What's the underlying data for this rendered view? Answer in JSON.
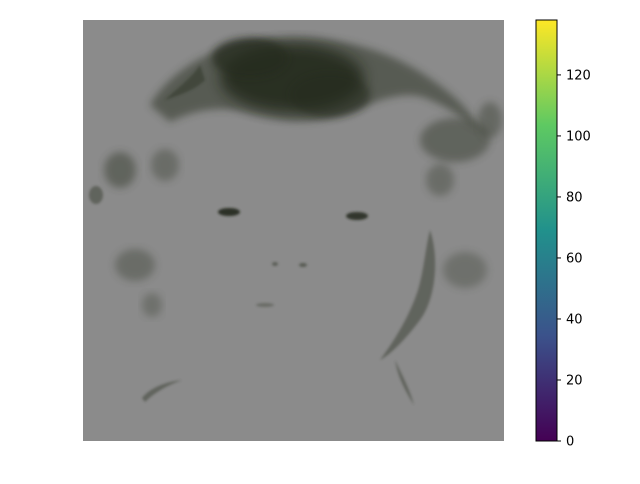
{
  "chart_data": {
    "type": "heatmap",
    "title": "",
    "xlabel": "",
    "ylabel": "",
    "axes_visible": false,
    "image_description": "grayscale difference/saliency map of a face: mostly flat mid-gray with dark regions at hair, eyes, nostrils, mouth and jaw edges",
    "colorbar": {
      "colormap": "viridis",
      "colormap_stops": [
        "#440154",
        "#3b528b",
        "#21918c",
        "#5ec962",
        "#fde725"
      ],
      "range": [
        0,
        138
      ],
      "ticks": [
        0,
        20,
        40,
        60,
        80,
        100,
        120
      ],
      "tick_labels": [
        "0",
        "20",
        "40",
        "60",
        "80",
        "100",
        "120"
      ],
      "placement": "right"
    },
    "colors": {
      "background_gray": "#8b8b8b",
      "dark_region": "#1c2116"
    }
  }
}
